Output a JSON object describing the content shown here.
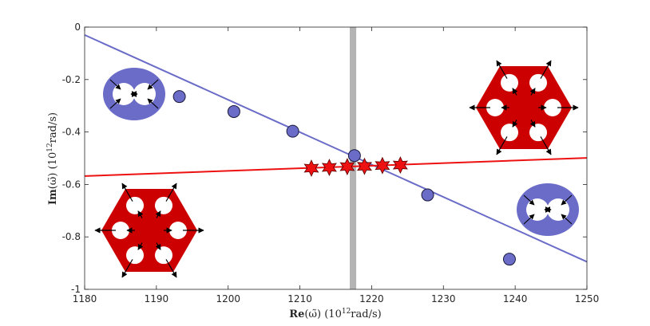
{
  "chart_data": {
    "type": "scatter",
    "title": "",
    "xlabel": {
      "bold": "Re",
      "rest": "(ω̃) (10",
      "sup": "12",
      "tail": "rad/s)"
    },
    "ylabel": {
      "bold": "Im",
      "rest": "(ω̃) (10",
      "sup": "12",
      "tail": "rad/s)"
    },
    "xlim": [
      1180,
      1250
    ],
    "ylim": [
      -1,
      0
    ],
    "xticks": [
      "1180",
      "1190",
      "1200",
      "1210",
      "1220",
      "1230",
      "1240",
      "1250"
    ],
    "yticks": [
      "0",
      "-0.2",
      "-0.4",
      "-0.6",
      "-0.8",
      "-1"
    ],
    "grid": false,
    "series": [
      {
        "marker": "circle",
        "color": "#6a6cc8",
        "points": [
          [
            1193.2,
            -0.265
          ],
          [
            1200.8,
            -0.322
          ],
          [
            1209.0,
            -0.397
          ],
          [
            1217.6,
            -0.49
          ],
          [
            1227.8,
            -0.64
          ],
          [
            1239.2,
            -0.885
          ]
        ]
      },
      {
        "marker": "star",
        "color": "#ee1111",
        "points": [
          [
            1211.6,
            -0.538
          ],
          [
            1214.1,
            -0.535
          ],
          [
            1216.6,
            -0.532
          ],
          [
            1219.0,
            -0.531
          ],
          [
            1221.5,
            -0.528
          ],
          [
            1224.0,
            -0.526
          ]
        ]
      }
    ],
    "fit_lines": [
      {
        "color": "#6a6cc8",
        "from": [
          1180,
          -0.03
        ],
        "to": [
          1250,
          -0.895
        ]
      },
      {
        "color": "#ee1111",
        "from": [
          1180,
          -0.568
        ],
        "to": [
          1250,
          -0.499
        ]
      }
    ],
    "vertical_band": {
      "x": 1217.4,
      "width": 0.9,
      "color": "#b4b4b4"
    },
    "insets": [
      {
        "type": "ellipse-dimer",
        "corner": "top-left"
      },
      {
        "type": "ellipse-dimer",
        "corner": "bottom-right"
      },
      {
        "type": "hexagon-hexamer",
        "corner": "top-right"
      },
      {
        "type": "hexagon-hexamer",
        "corner": "bottom-left"
      }
    ]
  }
}
